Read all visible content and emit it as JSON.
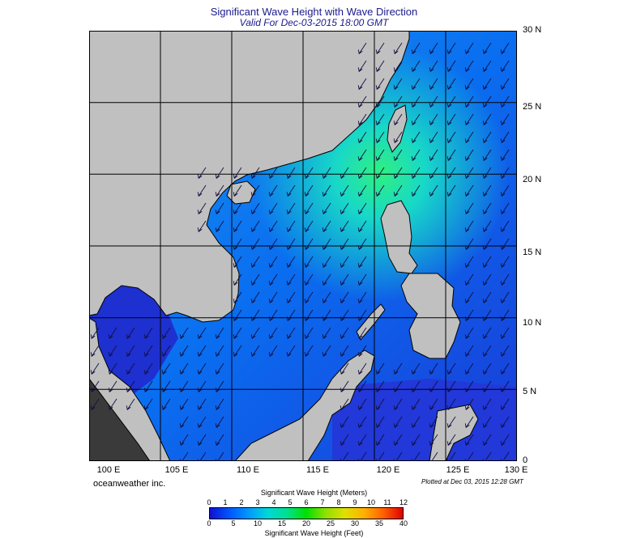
{
  "header": {
    "title": "Significant Wave Height with Wave Direction",
    "subtitle": "Valid For Dec-03-2015 18:00 GMT"
  },
  "map": {
    "lat_labels": [
      "30 N",
      "25 N",
      "20 N",
      "15 N",
      "10 N",
      "5 N",
      "0"
    ],
    "lon_labels": [
      "100 E",
      "105 E",
      "110 E",
      "115 E",
      "120 E",
      "125 E",
      "130 E"
    ],
    "land_color": "#c0c0c0",
    "sea_color_low": "#1a3ad8",
    "sea_color_mid": "#0a8cf0",
    "sea_color_high": "#16e6c0",
    "arrow_direction": "southwest"
  },
  "footer": {
    "credit": "oceanweather inc.",
    "plotted": "Plotted at Dec 03, 2015 12:28 GMT"
  },
  "legend": {
    "title_meters": "Significant Wave Height (Meters)",
    "title_feet": "Significant Wave Height (Feet)",
    "meters_ticks": [
      "0",
      "1",
      "2",
      "3",
      "4",
      "5",
      "6",
      "7",
      "8",
      "9",
      "10",
      "11",
      "12"
    ],
    "feet_ticks": [
      "0",
      "5",
      "10",
      "15",
      "20",
      "25",
      "30",
      "35",
      "40"
    ]
  }
}
